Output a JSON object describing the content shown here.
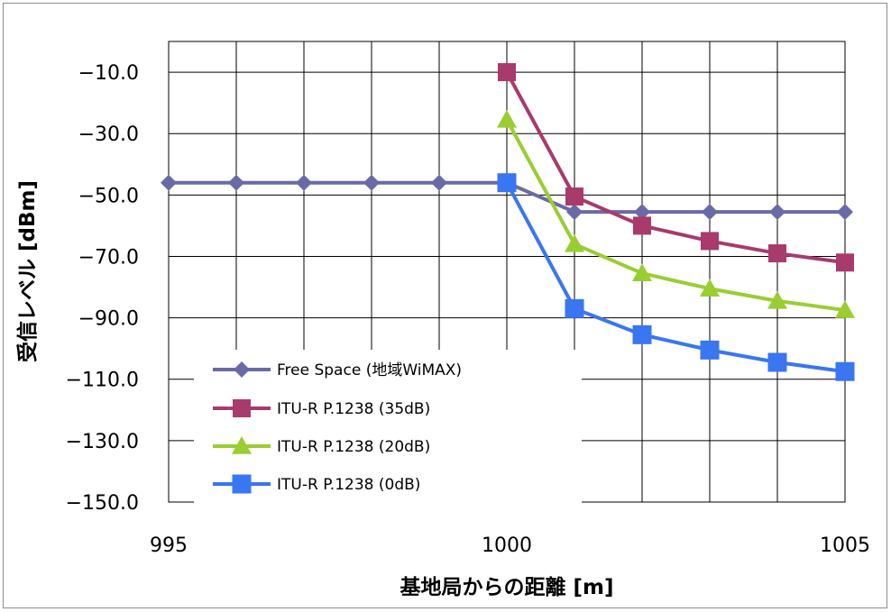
{
  "chart_data": {
    "type": "line",
    "xlabel": "基地局からの距離 [m]",
    "ylabel": "受信レベル [dBm]",
    "xlim": [
      995,
      1005
    ],
    "ylim": [
      -150,
      0
    ],
    "x_ticks": [
      "995",
      "1000",
      "1005"
    ],
    "y_ticks": [
      "-10.0",
      "-30.0",
      "-50.0",
      "-70.0",
      "-90.0",
      "-110.0",
      "-130.0",
      "-150.0"
    ],
    "grid": true,
    "legend_position": "bottom-left",
    "series": [
      {
        "name": "Free Space (地域WiMAX)",
        "color": "#6a6aa6",
        "marker": "diamond",
        "x": [
          995,
          996,
          997,
          998,
          999,
          1000,
          1001,
          1002,
          1003,
          1004,
          1005
        ],
        "y": [
          -46,
          -46,
          -46,
          -46,
          -46,
          -46,
          -55.5,
          -55.5,
          -55.5,
          -55.5,
          -55.5
        ]
      },
      {
        "name": "ITU-R P.1238 (35dB)",
        "color": "#a83a6c",
        "marker": "square",
        "x": [
          1000,
          1001,
          1002,
          1003,
          1004,
          1005
        ],
        "y": [
          -10,
          -50.5,
          -60,
          -65,
          -69,
          -72
        ]
      },
      {
        "name": "ITU-R P.1238 (20dB)",
        "color": "#9acd32",
        "marker": "triangle",
        "x": [
          1000,
          1001,
          1002,
          1003,
          1004,
          1005
        ],
        "y": [
          -25.5,
          -66,
          -75.5,
          -80.5,
          -84.5,
          -87.5
        ]
      },
      {
        "name": "ITU-R P.1238 (0dB)",
        "color": "#3a76f0",
        "marker": "square-large",
        "x": [
          1000,
          1001,
          1002,
          1003,
          1004,
          1005
        ],
        "y": [
          -46,
          -87,
          -95.5,
          -100.5,
          -104.5,
          -107.5
        ]
      }
    ]
  }
}
